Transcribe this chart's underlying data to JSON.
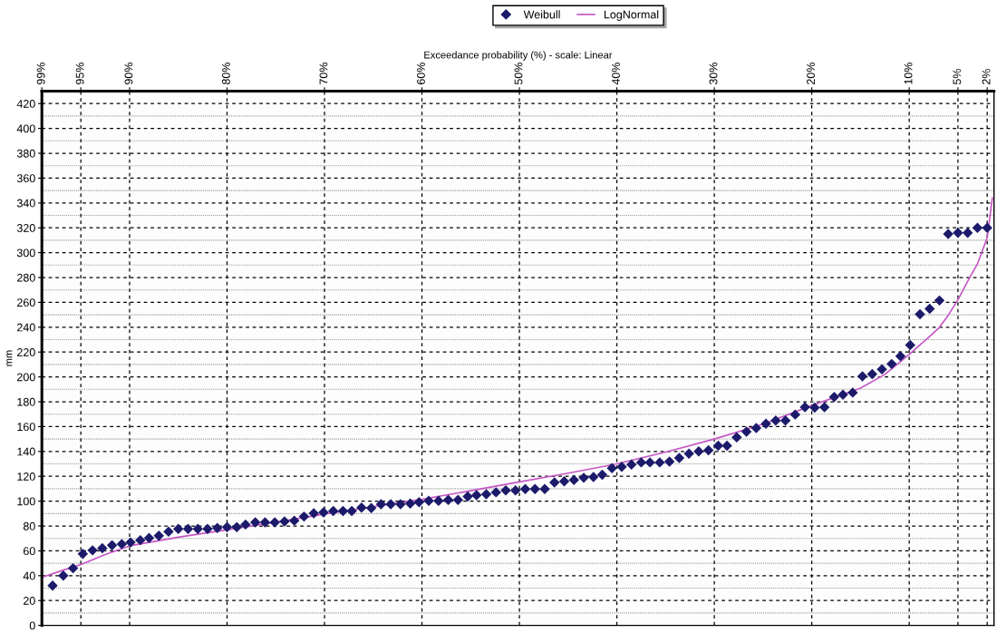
{
  "chart_data": {
    "type": "scatter",
    "xlabel": "Exceedance probability (%) - scale: Linear",
    "ylabel": "mm",
    "xlim": [
      99,
      1.3
    ],
    "xticks": [
      {
        "value": 99,
        "label": "99%"
      },
      {
        "value": 95,
        "label": "95%"
      },
      {
        "value": 90,
        "label": "90%"
      },
      {
        "value": 80,
        "label": "80%"
      },
      {
        "value": 70,
        "label": "70%"
      },
      {
        "value": 60,
        "label": "60%"
      },
      {
        "value": 50,
        "label": "50%"
      },
      {
        "value": 40,
        "label": "40%"
      },
      {
        "value": 30,
        "label": "30%"
      },
      {
        "value": 20,
        "label": "20%"
      },
      {
        "value": 10,
        "label": "10%"
      },
      {
        "value": 5,
        "label": "5%"
      },
      {
        "value": 2,
        "label": "2%"
      }
    ],
    "ylim": [
      0,
      430
    ],
    "yticks": [
      0,
      20,
      40,
      60,
      80,
      100,
      120,
      140,
      160,
      180,
      200,
      220,
      240,
      260,
      280,
      300,
      320,
      340,
      360,
      380,
      400,
      420
    ],
    "grid": true,
    "legend": "top",
    "series": [
      {
        "name": "Weibull",
        "marker": "diamond",
        "color": "#1c1a6a",
        "x": [
          97.9,
          96.8,
          95.8,
          94.8,
          93.8,
          92.8,
          91.8,
          90.8,
          89.9,
          88.9,
          88.0,
          87.0,
          86.0,
          85.0,
          84.0,
          83.0,
          82.0,
          81.0,
          80.0,
          79.0,
          78.1,
          77.1,
          76.1,
          75.1,
          74.1,
          73.1,
          72.1,
          71.1,
          70.1,
          69.1,
          68.1,
          67.2,
          66.2,
          65.2,
          64.2,
          63.2,
          62.2,
          61.2,
          60.3,
          59.3,
          58.3,
          57.3,
          56.3,
          55.3,
          54.4,
          53.4,
          52.4,
          51.4,
          50.4,
          49.4,
          48.4,
          47.4,
          46.4,
          45.4,
          44.4,
          43.4,
          42.4,
          41.5,
          40.5,
          39.5,
          38.5,
          37.5,
          36.6,
          35.6,
          34.6,
          33.6,
          32.6,
          31.6,
          30.6,
          29.6,
          28.7,
          27.7,
          26.7,
          25.7,
          24.7,
          23.7,
          22.7,
          21.7,
          20.7,
          19.7,
          18.7,
          17.7,
          16.8,
          15.8,
          14.8,
          13.8,
          12.8,
          11.8,
          10.9,
          9.9,
          8.9,
          7.9,
          6.9,
          6.0,
          5.0,
          4.0,
          3.0,
          2.0
        ],
        "values": [
          32,
          40,
          46,
          57.5,
          60.4,
          62.2,
          64.5,
          65.5,
          66.8,
          68.6,
          70.4,
          72.2,
          75.5,
          77.6,
          77.6,
          77.6,
          77.6,
          78.3,
          79.1,
          79.1,
          81.2,
          83,
          83,
          83,
          83.7,
          84.3,
          87.6,
          90.2,
          90.9,
          92,
          92,
          92,
          94.8,
          94.5,
          97.6,
          97.6,
          97.6,
          98.1,
          99.2,
          100.2,
          100.2,
          101,
          101,
          103.8,
          104.8,
          105.6,
          107.1,
          108.7,
          108.7,
          109.7,
          109.7,
          109.7,
          115,
          116,
          117,
          118.8,
          119.5,
          121.3,
          126.6,
          127.6,
          129.4,
          131.2,
          131.2,
          131.2,
          131.9,
          134.7,
          138.3,
          140,
          141,
          144.6,
          144.6,
          151.4,
          156,
          158.8,
          162.3,
          164.8,
          164.8,
          169.7,
          175.7,
          175.2,
          175.7,
          183.8,
          185.6,
          187.4,
          200.5,
          202.3,
          206.1,
          210.4,
          216.7,
          225.6,
          250.4,
          254.9,
          261.5,
          315,
          316,
          316,
          320,
          320
        ]
      },
      {
        "name": "LogNormal",
        "type": "line",
        "marker": "none",
        "line_style": "solid",
        "color": "#c656c6",
        "x": [
          98.9,
          97,
          95,
          92.5,
          90,
          85,
          80,
          75,
          70,
          65,
          60,
          55,
          50,
          45,
          40,
          35,
          30,
          25,
          20,
          15,
          12.5,
          10,
          8,
          7,
          6,
          5,
          4,
          3,
          2,
          1.47
        ],
        "values": [
          39,
          44,
          49,
          57,
          64,
          71,
          77,
          83,
          89.6,
          95.5,
          101.5,
          108.4,
          115.5,
          122.5,
          130,
          139.5,
          150,
          162,
          177,
          191,
          202,
          218,
          232,
          239,
          249.6,
          262,
          277,
          291,
          312,
          344
        ]
      }
    ]
  }
}
